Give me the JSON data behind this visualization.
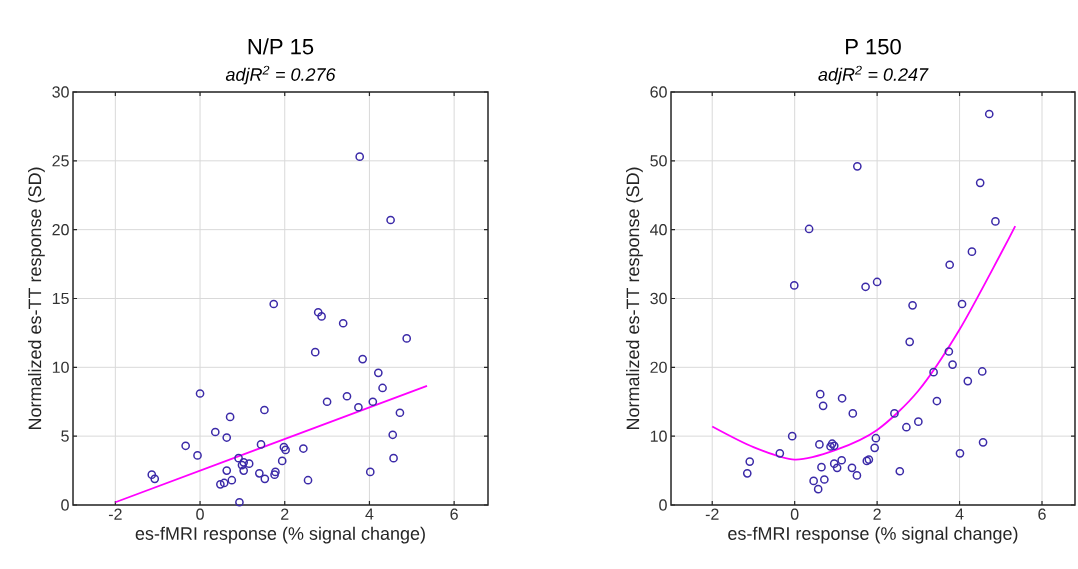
{
  "chart_data": [
    {
      "type": "scatter",
      "title": "N/P 15",
      "subtitle": "adjR$^{2}$ = 0.276",
      "xlabel": "es-fMRI response (% signal change)",
      "ylabel": "Normalized es-TT response (SD)",
      "xlim": [
        -3,
        6.8
      ],
      "ylim": [
        0,
        30
      ],
      "xticks": [
        -2,
        0,
        2,
        4,
        6
      ],
      "yticks": [
        0,
        5,
        10,
        15,
        20,
        25,
        30
      ],
      "grid": true,
      "series": [
        {
          "marker": "circle",
          "color": "#3b2aa8",
          "x": [
            3.77,
            4.5,
            1.74,
            2.79,
            2.87,
            3.38,
            4.88,
            2.72,
            3.84,
            4.21,
            4.31,
            0.0,
            3.47,
            3.0,
            4.08,
            3.74,
            1.52,
            4.72,
            0.71,
            0.36,
            0.63,
            4.55,
            -0.34,
            1.44,
            1.98,
            2.02,
            2.44,
            -0.06,
            1.94,
            4.57,
            0.91,
            1.03,
            1.16,
            0.99,
            0.63,
            1.03,
            1.4,
            1.78,
            1.76,
            1.53,
            0.75,
            0.57,
            0.48,
            4.02,
            2.55,
            -1.14,
            -1.07,
            0.93
          ],
          "values": [
            25.3,
            20.7,
            14.6,
            14.0,
            13.7,
            13.2,
            12.1,
            11.1,
            10.6,
            9.6,
            8.5,
            8.1,
            7.9,
            7.5,
            7.5,
            7.1,
            6.9,
            6.7,
            6.4,
            5.3,
            4.9,
            5.1,
            4.3,
            4.4,
            4.2,
            4.0,
            4.1,
            3.6,
            3.2,
            3.4,
            3.4,
            3.1,
            3.0,
            2.9,
            2.5,
            2.5,
            2.3,
            2.4,
            2.2,
            1.9,
            1.8,
            1.6,
            1.5,
            2.4,
            1.8,
            2.2,
            1.9,
            0.2
          ]
        },
        {
          "type": "line",
          "marker": "none",
          "line_style": "solid",
          "color": "#ff00ff",
          "x": [
            -2,
            5.36
          ],
          "values": [
            0.2,
            8.65
          ]
        }
      ]
    },
    {
      "type": "scatter",
      "title": "P 150",
      "subtitle": "adjR$^{2}$ = 0.247",
      "xlabel": "es-fMRI response (% signal change)",
      "ylabel": "Normalized es-TT response (SD)",
      "xlim": [
        -3,
        6.8
      ],
      "ylim": [
        0,
        60
      ],
      "xticks": [
        -2,
        0,
        2,
        4,
        6
      ],
      "yticks": [
        0,
        10,
        20,
        30,
        40,
        50,
        60
      ],
      "grid": true,
      "series": [
        {
          "marker": "circle",
          "color": "#3b2aa8",
          "x": [
            4.72,
            1.52,
            4.5,
            0.35,
            4.87,
            4.3,
            3.76,
            -0.01,
            1.72,
            2.0,
            2.86,
            4.06,
            2.79,
            3.74,
            3.83,
            3.37,
            4.55,
            4.2,
            3.45,
            0.62,
            0.69,
            1.15,
            1.41,
            2.42,
            2.71,
            3.0,
            -0.06,
            1.97,
            1.94,
            4.57,
            4.01,
            -0.36,
            -1.09,
            -1.15,
            0.6,
            0.91,
            0.96,
            0.87,
            1.14,
            0.96,
            1.03,
            0.65,
            1.39,
            1.51,
            1.75,
            1.8,
            2.55,
            0.46,
            0.72,
            0.57
          ],
          "values": [
            56.8,
            49.2,
            46.8,
            40.1,
            41.2,
            36.8,
            34.9,
            31.9,
            31.7,
            32.4,
            29.0,
            29.2,
            23.7,
            22.3,
            20.4,
            19.3,
            19.4,
            18.0,
            15.1,
            16.1,
            14.4,
            15.5,
            13.3,
            13.3,
            11.3,
            12.1,
            10.0,
            9.7,
            8.3,
            9.1,
            7.5,
            7.5,
            6.3,
            4.6,
            8.8,
            8.9,
            8.6,
            8.5,
            6.5,
            6.0,
            5.4,
            5.5,
            5.4,
            4.3,
            6.4,
            6.6,
            4.9,
            3.5,
            3.7,
            2.3
          ]
        },
        {
          "type": "line",
          "marker": "none",
          "line_style": "solid",
          "color": "#ff00ff",
          "x": [
            -2,
            -1,
            0,
            1,
            2,
            3,
            4,
            5,
            5.35
          ],
          "values": [
            11.4,
            8.4,
            6.6,
            8.0,
            10.9,
            16.6,
            25.5,
            36.5,
            40.5
          ]
        }
      ]
    }
  ]
}
